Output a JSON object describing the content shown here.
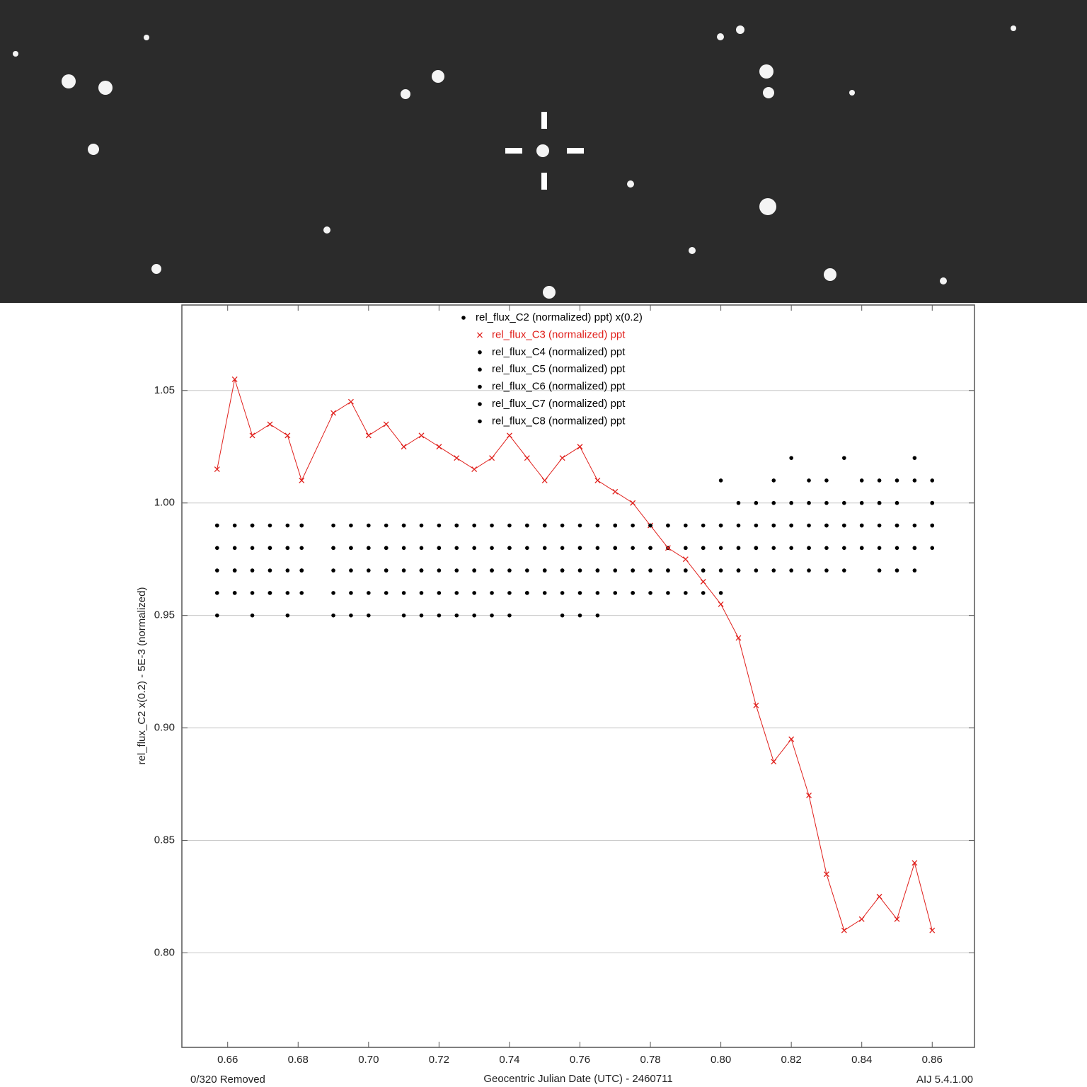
{
  "chart_data": {
    "type": "scatter",
    "ylabel": "rel_flux_C2 x(0.2) - 5E-3 (normalized)",
    "xlabel": "Geocentric Julian Date (UTC) - 2460711",
    "footer_left": "0/320 Removed",
    "footer_right": "AIJ 5.4.1.00",
    "xlim": [
      0.647,
      0.872
    ],
    "ylim": [
      0.758,
      1.088
    ],
    "xticks": [
      0.66,
      {
        "value": 0.68,
        "label": "0.68"
      },
      {
        "value": 0.7,
        "label": "0.70"
      },
      0.72,
      0.74,
      0.76,
      0.78,
      {
        "value": 0.8,
        "label": "0.80"
      },
      0.82,
      0.84,
      0.86
    ],
    "yticks": [
      {
        "value": 0.8,
        "label": "0.80"
      },
      0.85,
      {
        "value": 0.9,
        "label": "0.90"
      },
      0.95,
      {
        "value": 1.0,
        "label": "1.00"
      },
      1.05
    ],
    "grid": true,
    "x": [
      0.657,
      0.662,
      0.667,
      0.672,
      0.677,
      0.681,
      0.69,
      0.695,
      0.7,
      0.705,
      0.71,
      0.715,
      0.72,
      0.725,
      0.73,
      0.735,
      0.74,
      0.745,
      0.75,
      0.755,
      0.76,
      0.765,
      0.77,
      0.775,
      0.78,
      0.785,
      0.79,
      0.795,
      0.8,
      0.805,
      0.81,
      0.815,
      0.82,
      0.825,
      0.83,
      0.835,
      0.84,
      0.845,
      0.85,
      0.855,
      0.86
    ],
    "series": [
      {
        "name": "rel_flux_C2 (normalized) ppt) x(0.2)",
        "color": "#000000",
        "marker": "dot",
        "line": false,
        "values": [
          0.99,
          0.97,
          0.98,
          0.96,
          0.99,
          0.97,
          0.98,
          0.96,
          0.97,
          0.99,
          0.95,
          0.98,
          0.97,
          0.96,
          0.98,
          0.95,
          0.97,
          0.99,
          0.96,
          0.98,
          0.97,
          0.99,
          0.98,
          0.97,
          0.99,
          0.98,
          0.97,
          0.99,
          1.01,
          0.98,
          1.0,
          0.99,
          1.02,
          0.98,
          1.0,
          0.99,
          1.01,
          0.98,
          1.0,
          1.02,
          0.99
        ]
      },
      {
        "name": "rel_flux_C3 (normalized) ppt",
        "color": "#e0201c",
        "marker": "x",
        "line": true,
        "values": [
          1.015,
          1.055,
          1.03,
          1.035,
          1.03,
          1.01,
          1.04,
          1.045,
          1.03,
          1.035,
          1.025,
          1.03,
          1.025,
          1.02,
          1.015,
          1.02,
          1.03,
          1.02,
          1.01,
          1.02,
          1.025,
          1.01,
          1.005,
          1.0,
          0.99,
          0.98,
          0.975,
          0.965,
          0.955,
          0.94,
          0.91,
          0.885,
          0.895,
          0.87,
          0.835,
          0.81,
          0.815,
          0.825,
          0.815,
          0.84,
          0.81
        ]
      },
      {
        "name": "rel_flux_C4 (normalized) ppt",
        "color": "#000000",
        "marker": "dot",
        "line": false,
        "values": [
          0.96,
          0.99,
          0.95,
          0.98,
          0.97,
          0.99,
          0.96,
          0.98,
          0.99,
          0.97,
          0.98,
          0.96,
          0.99,
          0.97,
          0.95,
          0.98,
          0.96,
          0.97,
          0.98,
          0.96,
          0.99,
          0.97,
          0.96,
          0.98,
          0.97,
          0.96,
          0.98,
          0.97,
          0.99,
          1.0,
          0.98,
          1.01,
          0.99,
          1.0,
          0.98,
          1.02,
          0.99,
          1.0,
          0.98,
          1.01,
          1.0
        ]
      },
      {
        "name": "rel_flux_C5 (normalized) ppt",
        "color": "#000000",
        "marker": "dot",
        "line": false,
        "values": [
          0.98,
          0.96,
          0.99,
          0.97,
          0.95,
          0.98,
          0.99,
          0.97,
          0.95,
          0.98,
          0.96,
          0.99,
          0.98,
          0.95,
          0.97,
          0.99,
          0.98,
          0.96,
          0.99,
          0.97,
          0.95,
          0.98,
          0.99,
          0.96,
          0.98,
          0.99,
          0.96,
          0.98,
          0.97,
          0.99,
          0.98,
          0.97,
          1.0,
          0.99,
          0.97,
          1.0,
          0.98,
          0.99,
          1.01,
          0.98,
          0.99
        ]
      },
      {
        "name": "rel_flux_C6 (normalized) ppt",
        "color": "#000000",
        "marker": "dot",
        "line": false,
        "values": [
          0.97,
          0.98,
          0.96,
          0.99,
          0.98,
          0.96,
          0.97,
          0.99,
          0.98,
          0.96,
          0.99,
          0.97,
          0.95,
          0.98,
          0.99,
          0.97,
          0.99,
          0.98,
          0.97,
          0.95,
          0.98,
          0.96,
          0.97,
          0.99,
          0.96,
          0.97,
          0.99,
          0.96,
          0.98,
          0.97,
          0.99,
          0.98,
          0.98,
          0.97,
          0.99,
          0.98,
          1.0,
          0.97,
          0.99,
          0.98,
          1.01
        ]
      },
      {
        "name": "rel_flux_C7 (normalized) ppt",
        "color": "#000000",
        "marker": "dot",
        "line": false,
        "values": [
          0.95,
          0.97,
          0.99,
          0.96,
          0.98,
          0.97,
          0.95,
          0.98,
          0.96,
          0.98,
          0.97,
          0.95,
          0.98,
          0.99,
          0.96,
          0.97,
          0.95,
          0.99,
          0.97,
          0.99,
          0.96,
          0.97,
          0.98,
          0.96,
          0.99,
          0.97,
          0.98,
          0.97,
          0.96,
          0.98,
          0.97,
          0.99,
          0.97,
          1.01,
          0.99,
          0.97,
          0.99,
          1.01,
          0.97,
          0.99,
          0.98
        ]
      },
      {
        "name": "rel_flux_C8 (normalized) ppt",
        "color": "#000000",
        "marker": "dot",
        "line": false,
        "values": [
          0.99,
          0.96,
          0.97,
          0.98,
          0.96,
          0.99,
          0.98,
          0.95,
          0.98,
          0.97,
          0.99,
          0.97,
          0.96,
          0.99,
          0.97,
          0.96,
          0.98,
          0.96,
          0.99,
          0.97,
          0.98,
          0.95,
          0.99,
          0.97,
          0.98,
          0.99,
          0.97,
          0.98,
          0.99,
          0.97,
          0.98,
          1.0,
          0.99,
          0.98,
          1.01,
          0.99,
          0.98,
          1.0,
          0.99,
          0.97,
          1.0
        ]
      }
    ]
  }
}
